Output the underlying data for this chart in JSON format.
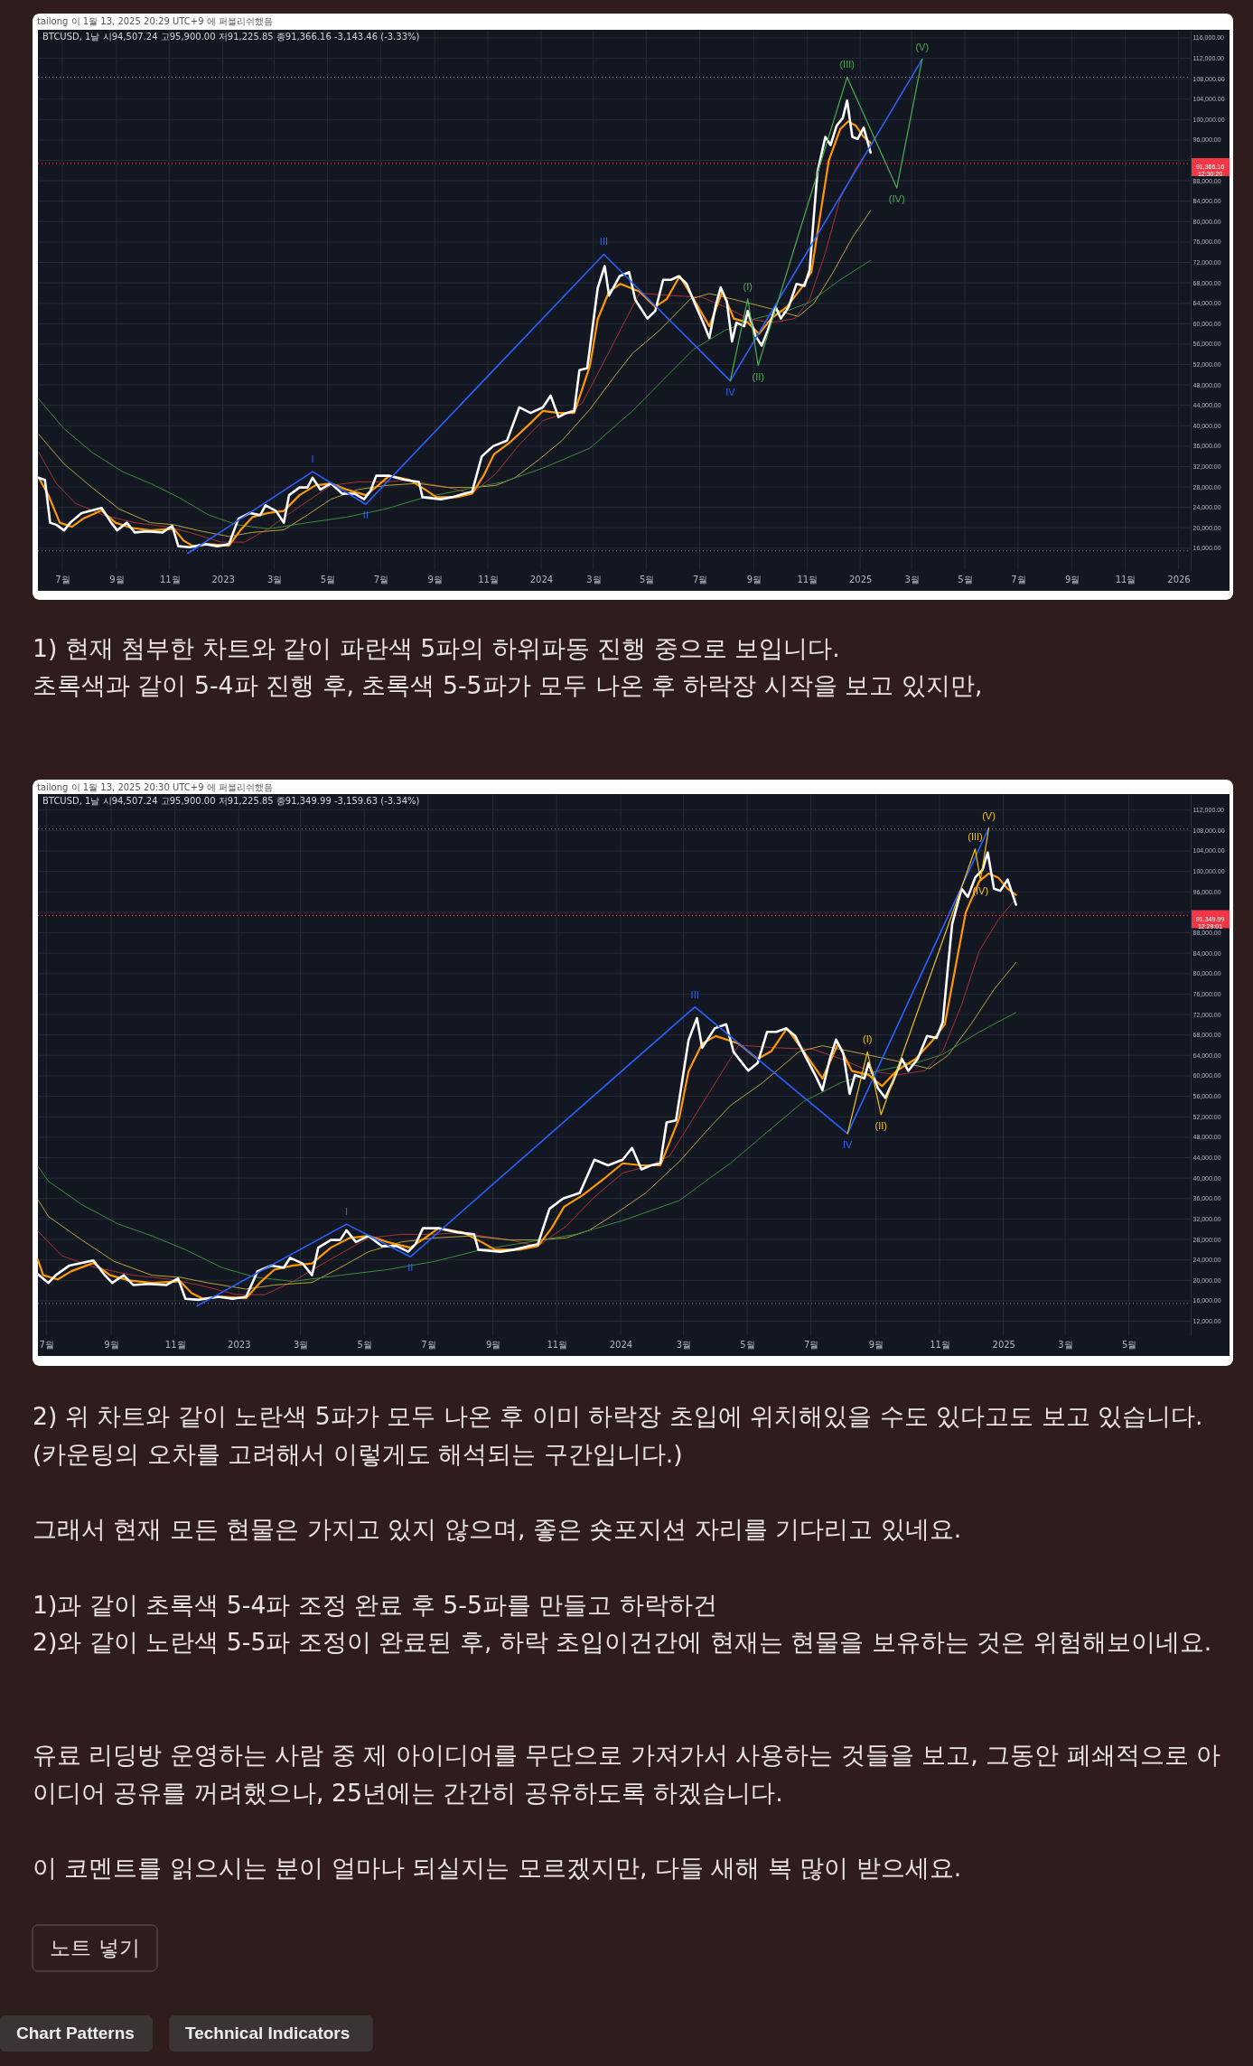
{
  "chart_data": [
    {
      "type": "line",
      "title": "tailong 이 1월 13, 2025 20:29 UTC+9 에 퍼블리쉬했음",
      "subtitle": "BTCUSD, 1날 시94,507.24 고95,900.00 저91,225.85 종91,366.16 -3,143.46 (-3.33%)",
      "xlim": [
        "2022-06-03",
        "2026-01-15"
      ],
      "ylim": [
        11730,
        117580
      ],
      "grid": true,
      "xticks": [
        {
          "value": "2022-07",
          "label": "7월"
        },
        {
          "value": "2022-09",
          "label": "9월"
        },
        {
          "value": "2022-11",
          "label": "11월"
        },
        "2023",
        {
          "value": "2023-03",
          "label": "3월"
        },
        {
          "value": "2023-05",
          "label": "5월"
        },
        {
          "value": "2023-07",
          "label": "7월"
        },
        {
          "value": "2023-09",
          "label": "9월"
        },
        {
          "value": "2023-11",
          "label": "11월"
        },
        "2024",
        {
          "value": "2024-03",
          "label": "3월"
        },
        {
          "value": "2024-05",
          "label": "5월"
        },
        {
          "value": "2024-07",
          "label": "7월"
        },
        {
          "value": "2024-09",
          "label": "9월"
        },
        {
          "value": "2024-11",
          "label": "11월"
        },
        "2025",
        {
          "value": "2025-03",
          "label": "3월"
        },
        {
          "value": "2025-05",
          "label": "5월"
        },
        {
          "value": "2025-07",
          "label": "7월"
        },
        {
          "value": "2025-09",
          "label": "9월"
        },
        {
          "value": "2025-11",
          "label": "11월"
        },
        "2026"
      ],
      "yticks": [
        {
          "value": 16000,
          "label": "16,000.00"
        },
        {
          "value": 20000,
          "label": "20,000.00"
        },
        {
          "value": 24000,
          "label": "24,000.00"
        },
        {
          "value": 28000,
          "label": "28,000.00"
        },
        {
          "value": 32000,
          "label": "32,000.00"
        },
        {
          "value": 36000,
          "label": "36,000.00"
        },
        {
          "value": 40000,
          "label": "40,000.00"
        },
        {
          "value": 44000,
          "label": "44,000.00"
        },
        {
          "value": 48000,
          "label": "48,000.00"
        },
        {
          "value": 52000,
          "label": "52,000.00"
        },
        {
          "value": 56000,
          "label": "56,000.00"
        },
        {
          "value": 60000,
          "label": "60,000.00"
        },
        {
          "value": 64000,
          "label": "64,000.00"
        },
        {
          "value": 68000,
          "label": "68,000.00"
        },
        {
          "value": 72000,
          "label": "72,000.00"
        },
        {
          "value": 76000,
          "label": "76,000.00"
        },
        {
          "value": 80000,
          "label": "80,000.00"
        },
        {
          "value": 84000,
          "label": "84,000.00"
        },
        {
          "value": 88000,
          "label": "88,000.00"
        },
        {
          "value": 92000,
          "label": null
        },
        {
          "value": 96000,
          "label": "96,000.00"
        },
        {
          "value": 100000,
          "label": "100,000.00"
        },
        {
          "value": 104000,
          "label": "104,000.00"
        },
        {
          "value": 108000,
          "label": "108,000.00"
        },
        {
          "value": 112000,
          "label": "112,000.00"
        },
        {
          "value": 116000,
          "label": "116,000.00"
        }
      ],
      "ref_lines": [
        {
          "axis": "y",
          "value": 108300,
          "color": "#787b86",
          "line_style": "dotted"
        },
        {
          "axis": "y",
          "value": 15500,
          "color": "#787b86",
          "line_style": "dotted"
        },
        {
          "axis": "y",
          "value": 91366.16,
          "label": "91,366.16\n12:30:20",
          "color": "#f23645",
          "line_style": "dotted"
        }
      ],
      "series": [
        {
          "color": "#a83232",
          "x": [
            "2022-06-04",
            "2022-06-24",
            "2022-07-16",
            "2022-08-17",
            "2022-09-22",
            "2022-10-28",
            "2022-11-24",
            "2022-12-30",
            "2023-01-26",
            "2023-02-22",
            "2023-03-16",
            "2023-04-08",
            "2023-05-05",
            "2023-06-05",
            "2023-07-07",
            "2023-08-03",
            "2023-08-21",
            "2023-09-17",
            "2023-10-14",
            "2023-11-10",
            "2023-12-07",
            "2024-01-03",
            "2024-01-30",
            "2024-02-17",
            "2024-03-06",
            "2024-03-29",
            "2024-04-23",
            "2024-05-29",
            "2024-07-03",
            "2024-07-30",
            "2024-08-25",
            "2024-09-21",
            "2024-10-18",
            "2024-11-04",
            "2024-11-22",
            "2024-12-09",
            "2024-12-27",
            "2025-01-13"
          ],
          "values": [
            34800,
            28700,
            24800,
            22500,
            21000,
            20200,
            19100,
            17200,
            17200,
            19800,
            22500,
            25200,
            28300,
            29000,
            29000,
            29400,
            28700,
            27900,
            26700,
            30600,
            36300,
            41000,
            42500,
            44400,
            50200,
            57800,
            66000,
            65500,
            65200,
            63300,
            61000,
            60200,
            61000,
            64800,
            73900,
            84500,
            90500,
            94700
          ]
        },
        {
          "color": "#b8a23a",
          "x": [
            "2022-06-04",
            "2022-07-03",
            "2022-08-04",
            "2022-09-04",
            "2022-10-10",
            "2022-11-06",
            "2022-12-03",
            "2023-01-08",
            "2023-02-04",
            "2023-03-12",
            "2023-04-08",
            "2023-05-05",
            "2023-06-05",
            "2023-07-07",
            "2023-08-12",
            "2023-09-17",
            "2023-10-14",
            "2023-11-10",
            "2023-12-02",
            "2023-12-29",
            "2024-01-25",
            "2024-02-26",
            "2024-03-24",
            "2024-04-15",
            "2024-05-16",
            "2024-06-20",
            "2024-07-12",
            "2024-08-08",
            "2024-09-03",
            "2024-09-30",
            "2024-10-22",
            "2024-11-09",
            "2024-12-01",
            "2024-12-23",
            "2025-01-13"
          ],
          "values": [
            38300,
            32500,
            27900,
            23700,
            21000,
            20600,
            19500,
            18300,
            19100,
            19600,
            22500,
            25600,
            27500,
            28300,
            28700,
            27900,
            27900,
            28300,
            29800,
            33300,
            37100,
            43200,
            49400,
            54200,
            58700,
            64800,
            65900,
            64800,
            63700,
            62500,
            61400,
            64000,
            70100,
            76900,
            82200
          ]
        },
        {
          "color": "#3b8a3e",
          "x": [
            "2022-06-04",
            "2022-07-03",
            "2022-08-04",
            "2022-09-08",
            "2022-10-10",
            "2022-11-11",
            "2022-12-16",
            "2023-01-17",
            "2023-02-22",
            "2023-04-08",
            "2023-05-23",
            "2023-07-07",
            "2023-08-21",
            "2023-10-05",
            "2023-11-19",
            "2024-01-03",
            "2024-02-26",
            "2024-04-02",
            "2024-04-15",
            "2024-05-20",
            "2024-06-24",
            "2024-07-30",
            "2024-09-03",
            "2024-10-09",
            "2024-11-04",
            "2024-12-09",
            "2025-01-13"
          ],
          "values": [
            45200,
            39400,
            34800,
            31000,
            28700,
            26000,
            22500,
            20600,
            19800,
            21000,
            22100,
            23700,
            26000,
            27500,
            29000,
            31700,
            35600,
            41000,
            42900,
            49000,
            55000,
            58700,
            61000,
            62500,
            64200,
            68600,
            72400
          ]
        },
        {
          "color": "#ff9800",
          "x": [
            "2022-06-04",
            "2022-06-15",
            "2022-06-28",
            "2022-07-12",
            "2022-07-25",
            "2022-08-15",
            "2022-08-31",
            "2022-09-18",
            "2022-10-10",
            "2022-11-06",
            "2022-11-17",
            "2022-11-28",
            "2022-12-16",
            "2023-01-08",
            "2023-01-21",
            "2023-02-04",
            "2023-02-22",
            "2023-03-12",
            "2023-03-30",
            "2023-04-17",
            "2023-05-05",
            "2023-05-23",
            "2023-06-14",
            "2023-06-28",
            "2023-07-11",
            "2023-08-03",
            "2023-08-21",
            "2023-09-03",
            "2023-09-26",
            "2023-10-14",
            "2023-10-27",
            "2023-11-08",
            "2023-11-26",
            "2023-12-18",
            "2024-01-03",
            "2024-01-21",
            "2024-02-08",
            "2024-02-26",
            "2024-03-06",
            "2024-03-19",
            "2024-04-01",
            "2024-04-23",
            "2024-05-11",
            "2024-05-24",
            "2024-06-08",
            "2024-06-24",
            "2024-07-12",
            "2024-07-27",
            "2024-08-09",
            "2024-08-25",
            "2024-09-07",
            "2024-09-21",
            "2024-10-09",
            "2024-10-26",
            "2024-11-06",
            "2024-11-17",
            "2024-11-26",
            "2024-12-09",
            "2024-12-18",
            "2024-12-27",
            "2025-01-05",
            "2025-01-13"
          ],
          "values": [
            29800,
            26400,
            21000,
            20200,
            21800,
            23400,
            21000,
            20000,
            19500,
            19800,
            17500,
            16400,
            16800,
            16500,
            19500,
            22100,
            22900,
            23300,
            26400,
            28300,
            28700,
            27500,
            26400,
            28300,
            30200,
            29400,
            27500,
            26000,
            26000,
            26700,
            30200,
            34400,
            36700,
            40200,
            42900,
            42500,
            42500,
            51700,
            60900,
            66300,
            67800,
            66300,
            63300,
            64800,
            69300,
            64800,
            59500,
            66300,
            61000,
            60200,
            58000,
            61000,
            63300,
            67100,
            70100,
            82200,
            92000,
            98100,
            99600,
            98800,
            96600,
            95400
          ]
        },
        {
          "color": "#ffffff",
          "x": [
            "2022-06-04",
            "2022-06-11",
            "2022-06-17",
            "2022-06-24",
            "2022-07-03",
            "2022-07-10",
            "2022-07-23",
            "2022-08-04",
            "2022-08-15",
            "2022-08-26",
            "2022-09-02",
            "2022-09-13",
            "2022-09-22",
            "2022-10-06",
            "2022-10-24",
            "2022-11-04",
            "2022-11-11",
            "2022-11-24",
            "2022-12-12",
            "2022-12-26",
            "2023-01-08",
            "2023-01-19",
            "2023-02-01",
            "2023-02-13",
            "2023-02-19",
            "2023-03-03",
            "2023-03-12",
            "2023-03-18",
            "2023-03-30",
            "2023-04-08",
            "2023-04-14",
            "2023-04-23",
            "2023-05-05",
            "2023-05-18",
            "2023-06-01",
            "2023-06-12",
            "2023-06-19",
            "2023-06-26",
            "2023-07-11",
            "2023-07-29",
            "2023-08-14",
            "2023-08-18",
            "2023-09-08",
            "2023-09-21",
            "2023-10-05",
            "2023-10-14",
            "2023-10-25",
            "2023-11-07",
            "2023-11-23",
            "2023-12-07",
            "2023-12-20",
            "2024-01-03",
            "2024-01-12",
            "2024-01-21",
            "2024-01-30",
            "2024-02-08",
            "2024-02-14",
            "2024-02-23",
            "2024-03-06",
            "2024-03-14",
            "2024-03-19",
            "2024-03-31",
            "2024-04-11",
            "2024-04-18",
            "2024-05-02",
            "2024-05-11",
            "2024-05-20",
            "2024-05-29",
            "2024-06-07",
            "2024-06-16",
            "2024-06-27",
            "2024-07-05",
            "2024-07-12",
            "2024-07-19",
            "2024-07-25",
            "2024-08-01",
            "2024-08-07",
            "2024-08-12",
            "2024-08-21",
            "2024-08-25",
            "2024-09-03",
            "2024-09-10",
            "2024-09-17",
            "2024-09-26",
            "2024-10-02",
            "2024-10-11",
            "2024-10-20",
            "2024-10-29",
            "2024-11-04",
            "2024-11-09",
            "2024-11-13",
            "2024-11-22",
            "2024-11-28",
            "2024-12-05",
            "2024-12-12",
            "2024-12-17",
            "2024-12-23",
            "2024-12-29",
            "2025-01-05",
            "2025-01-13"
          ],
          "values": [
            29800,
            29400,
            21000,
            20600,
            19500,
            21000,
            22900,
            23400,
            23900,
            21000,
            19500,
            21000,
            19100,
            19300,
            19100,
            20400,
            16400,
            16200,
            16800,
            16400,
            16800,
            21800,
            22900,
            22500,
            24400,
            23300,
            21000,
            26400,
            27900,
            27900,
            29800,
            27500,
            28700,
            26700,
            26700,
            25600,
            27100,
            30200,
            30200,
            29400,
            29000,
            26000,
            25600,
            26000,
            26700,
            27100,
            34000,
            36000,
            37100,
            43600,
            42500,
            43600,
            45900,
            41700,
            42500,
            42900,
            50900,
            51300,
            67000,
            71300,
            65500,
            69300,
            70100,
            64700,
            61000,
            62500,
            68600,
            68600,
            69300,
            67800,
            63300,
            60200,
            57200,
            63300,
            67100,
            64400,
            56500,
            60200,
            59500,
            62500,
            57600,
            55700,
            58700,
            63300,
            61000,
            63300,
            67800,
            67400,
            70500,
            81400,
            89700,
            96600,
            95000,
            98800,
            100300,
            103700,
            96600,
            96200,
            98400,
            93500
          ]
        },
        {
          "color": "#2962ff",
          "x": [
            "2022-11-22",
            "2023-04-14",
            "2023-06-14",
            "2024-03-13",
            "2024-08-05",
            "2025-03-13"
          ],
          "values": [
            15000,
            31000,
            24600,
            73600,
            48800,
            111800
          ],
          "value_labels": [
            null,
            "I",
            "II",
            "III",
            "IV",
            null
          ]
        },
        {
          "color": "#4caf50",
          "x": [
            "2024-08-05",
            "2024-08-25",
            "2024-09-06",
            "2024-12-17",
            "2025-02-12",
            "2025-03-13"
          ],
          "values": [
            48800,
            64900,
            51800,
            108300,
            86600,
            111800
          ],
          "value_labels": [
            null,
            "(I)",
            "(II)",
            "(III)",
            "(IV)",
            "(V)"
          ]
        }
      ]
    },
    {
      "type": "other",
      "annotations": [
        "1) 현재 첨부한 차트와 같이 파란색 5파의 하위파동 진행 중으로 보입니다.\n초록색과 같이 5-4파 진행 후, 초록색 5-5파가 모두 나온 후 하락장 시작을 보고 있지만,"
      ]
    },
    {
      "type": "line",
      "title": "tailong 이 1월 13, 2025 20:30 UTC+9 에 퍼블리쉬했음",
      "subtitle": "BTCUSD, 1날 시94,507.24 고95,900.00 저91,225.85 종91,349.99 -3,159.63 (-3.34%)",
      "xlim": [
        "2022-06-23",
        "2025-06-29"
      ],
      "ylim": [
        9280,
        115130
      ],
      "grid": true,
      "xticks": [
        {
          "value": "2022-07",
          "label": "7월"
        },
        {
          "value": "2022-09",
          "label": "9월"
        },
        {
          "value": "2022-11",
          "label": "11월"
        },
        "2023",
        {
          "value": "2023-03",
          "label": "3월"
        },
        {
          "value": "2023-05",
          "label": "5월"
        },
        {
          "value": "2023-07",
          "label": "7월"
        },
        {
          "value": "2023-09",
          "label": "9월"
        },
        {
          "value": "2023-11",
          "label": "11월"
        },
        "2024",
        {
          "value": "2024-03",
          "label": "3월"
        },
        {
          "value": "2024-05",
          "label": "5월"
        },
        {
          "value": "2024-07",
          "label": "7월"
        },
        {
          "value": "2024-09",
          "label": "9월"
        },
        {
          "value": "2024-11",
          "label": "11월"
        },
        "2025",
        {
          "value": "2025-03",
          "label": "3월"
        },
        {
          "value": "2025-05",
          "label": "5월"
        }
      ],
      "yticks": [
        {
          "value": 12000,
          "label": "12,000.00"
        },
        {
          "value": 16000,
          "label": "16,000.00"
        },
        {
          "value": 20000,
          "label": "20,000.00"
        },
        {
          "value": 24000,
          "label": "24,000.00"
        },
        {
          "value": 28000,
          "label": "28,000.00"
        },
        {
          "value": 32000,
          "label": "32,000.00"
        },
        {
          "value": 36000,
          "label": "36,000.00"
        },
        {
          "value": 40000,
          "label": "40,000.00"
        },
        {
          "value": 44000,
          "label": "44,000.00"
        },
        {
          "value": 48000,
          "label": "48,000.00"
        },
        {
          "value": 52000,
          "label": "52,000.00"
        },
        {
          "value": 56000,
          "label": "56,000.00"
        },
        {
          "value": 60000,
          "label": "60,000.00"
        },
        {
          "value": 64000,
          "label": "64,000.00"
        },
        {
          "value": 68000,
          "label": "68,000.00"
        },
        {
          "value": 72000,
          "label": "72,000.00"
        },
        {
          "value": 76000,
          "label": "76,000.00"
        },
        {
          "value": 80000,
          "label": "80,000.00"
        },
        {
          "value": 84000,
          "label": "84,000.00"
        },
        {
          "value": 88000,
          "label": "88,000.00"
        },
        {
          "value": 92000,
          "label": null
        },
        {
          "value": 96000,
          "label": "96,000.00"
        },
        {
          "value": 100000,
          "label": "100,000.00"
        },
        {
          "value": 104000,
          "label": "104,000.00"
        },
        {
          "value": 108000,
          "label": "108,000.00"
        },
        {
          "value": 112000,
          "label": "112,000.00"
        }
      ],
      "ref_lines": [
        {
          "axis": "y",
          "value": 108300,
          "color": "#787b86",
          "line_style": "dotted"
        },
        {
          "axis": "y",
          "value": 15500,
          "color": "#787b86",
          "line_style": "dotted"
        },
        {
          "axis": "y",
          "value": 91349.99,
          "label": "91,349.99\n12:29:01",
          "color": "#f23645",
          "line_style": "dotted"
        }
      ],
      "series": [
        {
          "color": "#a83232",
          "x": [
            "2022-06-23",
            "2022-07-16",
            "2022-08-17",
            "2022-09-22",
            "2022-10-28",
            "2022-11-24",
            "2022-12-30",
            "2023-01-26",
            "2023-02-22",
            "2023-03-16",
            "2023-04-08",
            "2023-05-05",
            "2023-06-05",
            "2023-07-07",
            "2023-08-03",
            "2023-08-21",
            "2023-09-17",
            "2023-10-14",
            "2023-11-10",
            "2023-12-07",
            "2024-01-03",
            "2024-01-30",
            "2024-02-17",
            "2024-03-06",
            "2024-03-29",
            "2024-04-23",
            "2024-05-29",
            "2024-07-03",
            "2024-07-30",
            "2024-08-25",
            "2024-09-21",
            "2024-10-18",
            "2024-11-04",
            "2024-11-22",
            "2024-12-09",
            "2024-12-27",
            "2025-01-13"
          ],
          "values": [
            29600,
            24800,
            22500,
            21000,
            20200,
            19100,
            17200,
            17200,
            19800,
            22500,
            25200,
            28300,
            29000,
            29000,
            29400,
            28700,
            27900,
            26700,
            30600,
            36300,
            41000,
            42500,
            44400,
            50200,
            57800,
            66000,
            65500,
            65200,
            63300,
            61000,
            60200,
            61000,
            64800,
            73900,
            84500,
            90500,
            94700
          ]
        },
        {
          "color": "#b8a23a",
          "x": [
            "2022-06-23",
            "2022-07-03",
            "2022-08-04",
            "2022-09-04",
            "2022-10-10",
            "2022-11-06",
            "2022-12-03",
            "2023-01-08",
            "2023-02-04",
            "2023-03-12",
            "2023-04-08",
            "2023-05-05",
            "2023-06-05",
            "2023-07-07",
            "2023-08-12",
            "2023-09-17",
            "2023-10-14",
            "2023-11-10",
            "2023-12-02",
            "2023-12-29",
            "2024-01-25",
            "2024-02-26",
            "2024-03-24",
            "2024-04-15",
            "2024-05-16",
            "2024-06-20",
            "2024-07-12",
            "2024-08-08",
            "2024-09-03",
            "2024-09-30",
            "2024-10-22",
            "2024-11-09",
            "2024-12-01",
            "2024-12-23",
            "2025-01-13"
          ],
          "values": [
            35800,
            32500,
            27900,
            23700,
            21000,
            20600,
            19500,
            18300,
            19100,
            19600,
            22500,
            25600,
            27500,
            28300,
            28700,
            27900,
            27900,
            28300,
            29800,
            33300,
            37100,
            43200,
            49400,
            54200,
            58700,
            64800,
            65900,
            64800,
            63700,
            62500,
            61400,
            64000,
            70100,
            76900,
            82200
          ]
        },
        {
          "color": "#3b8a3e",
          "x": [
            "2022-06-23",
            "2022-07-03",
            "2022-08-04",
            "2022-09-08",
            "2022-10-10",
            "2022-11-11",
            "2022-12-16",
            "2023-01-17",
            "2023-02-22",
            "2023-04-08",
            "2023-05-23",
            "2023-07-07",
            "2023-08-21",
            "2023-10-05",
            "2023-11-19",
            "2024-01-03",
            "2024-02-26",
            "2024-04-02",
            "2024-04-15",
            "2024-05-20",
            "2024-06-24",
            "2024-07-30",
            "2024-09-03",
            "2024-10-09",
            "2024-11-04",
            "2024-12-09",
            "2025-01-13"
          ],
          "values": [
            42300,
            39400,
            34800,
            31000,
            28700,
            26000,
            22500,
            20600,
            19800,
            21000,
            22100,
            23700,
            26000,
            27500,
            29000,
            31700,
            35600,
            41000,
            42900,
            49000,
            55000,
            58700,
            61000,
            62500,
            64200,
            68600,
            72400
          ]
        },
        {
          "color": "#ff9800",
          "x": [
            "2022-06-23",
            "2022-06-28",
            "2022-07-12",
            "2022-07-25",
            "2022-08-15",
            "2022-08-31",
            "2022-09-18",
            "2022-10-10",
            "2022-11-06",
            "2022-11-17",
            "2022-11-28",
            "2022-12-16",
            "2023-01-08",
            "2023-01-21",
            "2023-02-04",
            "2023-02-22",
            "2023-03-12",
            "2023-03-30",
            "2023-04-17",
            "2023-05-05",
            "2023-05-23",
            "2023-06-14",
            "2023-06-28",
            "2023-07-11",
            "2023-08-03",
            "2023-08-21",
            "2023-09-03",
            "2023-09-26",
            "2023-10-14",
            "2023-10-27",
            "2023-11-08",
            "2023-11-26",
            "2023-12-18",
            "2024-01-03",
            "2024-01-21",
            "2024-02-08",
            "2024-02-26",
            "2024-03-06",
            "2024-03-19",
            "2024-04-01",
            "2024-04-23",
            "2024-05-11",
            "2024-05-24",
            "2024-06-08",
            "2024-06-24",
            "2024-07-12",
            "2024-07-27",
            "2024-08-09",
            "2024-08-25",
            "2024-09-07",
            "2024-09-21",
            "2024-10-09",
            "2024-10-26",
            "2024-11-06",
            "2024-11-17",
            "2024-11-26",
            "2024-12-09",
            "2024-12-18",
            "2024-12-27",
            "2025-01-05",
            "2025-01-13"
          ],
          "values": [
            24000,
            21000,
            20200,
            21800,
            23400,
            21000,
            20000,
            19500,
            19800,
            17500,
            16400,
            16800,
            16500,
            19500,
            22100,
            22900,
            23300,
            26400,
            28300,
            28700,
            27500,
            26400,
            28300,
            30200,
            29400,
            27500,
            26000,
            26000,
            26700,
            30200,
            34400,
            36700,
            40200,
            42900,
            42500,
            42500,
            51700,
            60900,
            66300,
            67800,
            66300,
            63300,
            64800,
            69300,
            64800,
            59500,
            66300,
            61000,
            60200,
            58000,
            61000,
            63300,
            67100,
            70100,
            82200,
            92000,
            98100,
            99600,
            98800,
            96600,
            95400
          ]
        },
        {
          "color": "#ffffff",
          "x": [
            "2022-06-23",
            "2022-07-03",
            "2022-07-10",
            "2022-07-23",
            "2022-08-04",
            "2022-08-15",
            "2022-08-26",
            "2022-09-02",
            "2022-09-13",
            "2022-09-22",
            "2022-10-06",
            "2022-10-24",
            "2022-11-04",
            "2022-11-11",
            "2022-11-24",
            "2022-12-12",
            "2022-12-26",
            "2023-01-08",
            "2023-01-19",
            "2023-02-01",
            "2023-02-13",
            "2023-02-19",
            "2023-03-03",
            "2023-03-12",
            "2023-03-18",
            "2023-03-30",
            "2023-04-08",
            "2023-04-14",
            "2023-04-23",
            "2023-05-05",
            "2023-05-18",
            "2023-06-01",
            "2023-06-12",
            "2023-06-19",
            "2023-06-26",
            "2023-07-11",
            "2023-07-29",
            "2023-08-14",
            "2023-08-18",
            "2023-09-08",
            "2023-09-21",
            "2023-10-05",
            "2023-10-14",
            "2023-10-25",
            "2023-11-07",
            "2023-11-23",
            "2023-12-07",
            "2023-12-20",
            "2024-01-03",
            "2024-01-12",
            "2024-01-21",
            "2024-01-30",
            "2024-02-08",
            "2024-02-14",
            "2024-02-23",
            "2024-03-06",
            "2024-03-14",
            "2024-03-19",
            "2024-03-31",
            "2024-04-11",
            "2024-04-18",
            "2024-05-02",
            "2024-05-11",
            "2024-05-20",
            "2024-05-29",
            "2024-06-07",
            "2024-06-16",
            "2024-06-27",
            "2024-07-05",
            "2024-07-12",
            "2024-07-19",
            "2024-07-25",
            "2024-08-01",
            "2024-08-07",
            "2024-08-12",
            "2024-08-21",
            "2024-08-25",
            "2024-09-03",
            "2024-09-10",
            "2024-09-17",
            "2024-09-26",
            "2024-10-02",
            "2024-10-11",
            "2024-10-20",
            "2024-10-29",
            "2024-11-04",
            "2024-11-09",
            "2024-11-13",
            "2024-11-22",
            "2024-11-28",
            "2024-12-05",
            "2024-12-12",
            "2024-12-17",
            "2024-12-23",
            "2024-12-29",
            "2025-01-05",
            "2025-01-13"
          ],
          "values": [
            21200,
            19500,
            21000,
            22900,
            23400,
            23900,
            21000,
            19500,
            21000,
            19100,
            19300,
            19100,
            20400,
            16400,
            16200,
            16800,
            16400,
            16800,
            21800,
            22900,
            22500,
            24400,
            23300,
            21000,
            26400,
            27900,
            27900,
            29800,
            27500,
            28700,
            26700,
            26700,
            25600,
            27100,
            30200,
            30200,
            29400,
            29000,
            26000,
            25600,
            26000,
            26700,
            27100,
            34000,
            36000,
            37100,
            43600,
            42500,
            43600,
            45900,
            41700,
            42500,
            42900,
            50900,
            51300,
            67000,
            71300,
            65500,
            69300,
            70100,
            64700,
            61000,
            62500,
            68600,
            68600,
            69300,
            67800,
            63300,
            60200,
            57200,
            63300,
            67100,
            64400,
            56500,
            60200,
            59500,
            62500,
            57600,
            55700,
            58700,
            63300,
            61000,
            63300,
            67800,
            67400,
            70500,
            81400,
            89700,
            96600,
            95000,
            98800,
            100300,
            103700,
            96600,
            96200,
            98400,
            93500
          ]
        },
        {
          "color": "#2962ff",
          "x": [
            "2022-11-22",
            "2023-04-14",
            "2023-06-14",
            "2024-03-12",
            "2024-08-05",
            "2024-12-18"
          ],
          "values": [
            15000,
            31000,
            24600,
            73500,
            48700,
            108500
          ],
          "value_labels": [
            null,
            "I",
            "II",
            "III",
            "IV",
            null
          ]
        },
        {
          "color": "#f2c318",
          "x": [
            "2024-08-05",
            "2024-08-24",
            "2024-09-06",
            "2024-12-05",
            "2024-12-10",
            "2024-12-18"
          ],
          "values": [
            48700,
            64700,
            52400,
            104400,
            98300,
            108500
          ],
          "value_labels": [
            null,
            "(I)",
            "(II)",
            "(III)",
            "(IV)",
            "(V)"
          ]
        }
      ]
    },
    {
      "type": "other",
      "annotations": [
        "2) 위 차트와 같이 노란색 5파가 모두 나온 후 이미 하락장 초입에 위치해있을 수도 있다고도 보고 있습니다.\n(카운팅의 오차를 고려해서 이렇게도 해석되는 구간입니다.)\n\n그래서 현재 모든 현물은 가지고 있지 않으며, 좋은 숏포지션 자리를 기다리고 있네요.\n\n1)과 같이 초록색 5-4파 조정 완료 후 5-5파를 만들고 하락하건\n2)와 같이 노란색 5-5파 조정이 완료된 후, 하락 초입이건간에 현재는 현물을 보유하는 것은 위험해보이네요.\n\n\n유료 리딩방 운영하는 사람 중 제 아이디어를 무단으로 가져가서 사용하는 것들을 보고, 그동안 폐쇄적으로 아\n이디어 공유를 꺼려했으나, 25년에는 간간히 공유하도록 하겠습니다.\n\n이 코멘트를 읽으시는 분이 얼마나 되실지는 모르겠지만, 다들 새해 복 많이 받으세요.",
        "노트 넣기",
        "Chart Patterns",
        "Technical Indicators"
      ]
    }
  ]
}
